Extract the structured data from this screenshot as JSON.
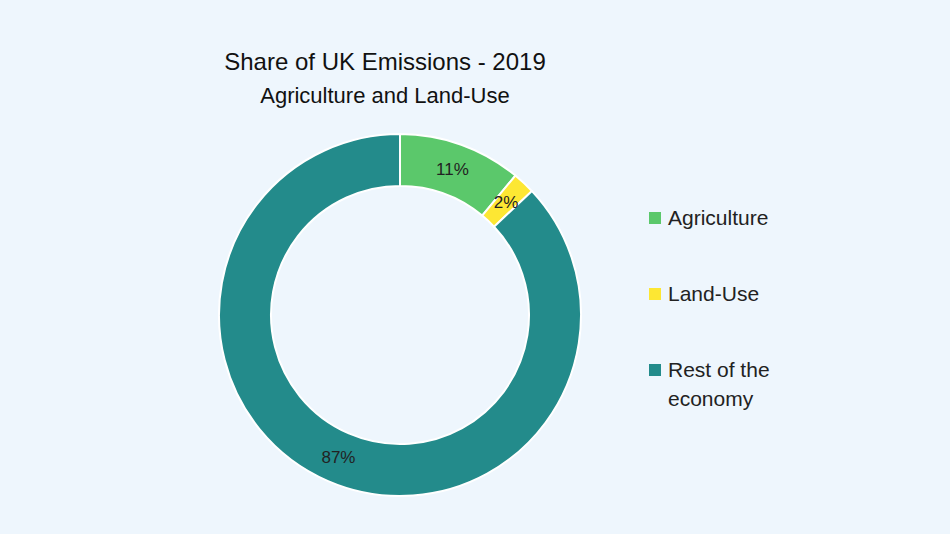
{
  "chart_data": {
    "type": "pie",
    "title": "Share of UK Emissions - 2019",
    "subtitle": "Agriculture and Land-Use",
    "categories": [
      "Agriculture",
      "Land-Use",
      "Rest of the economy"
    ],
    "values": [
      11,
      2,
      87
    ],
    "value_labels": [
      "11%",
      "2%",
      "87%"
    ],
    "colors": [
      "#5bc86b",
      "#fde733",
      "#238b8b"
    ],
    "data_labels": true,
    "legend": "right"
  }
}
